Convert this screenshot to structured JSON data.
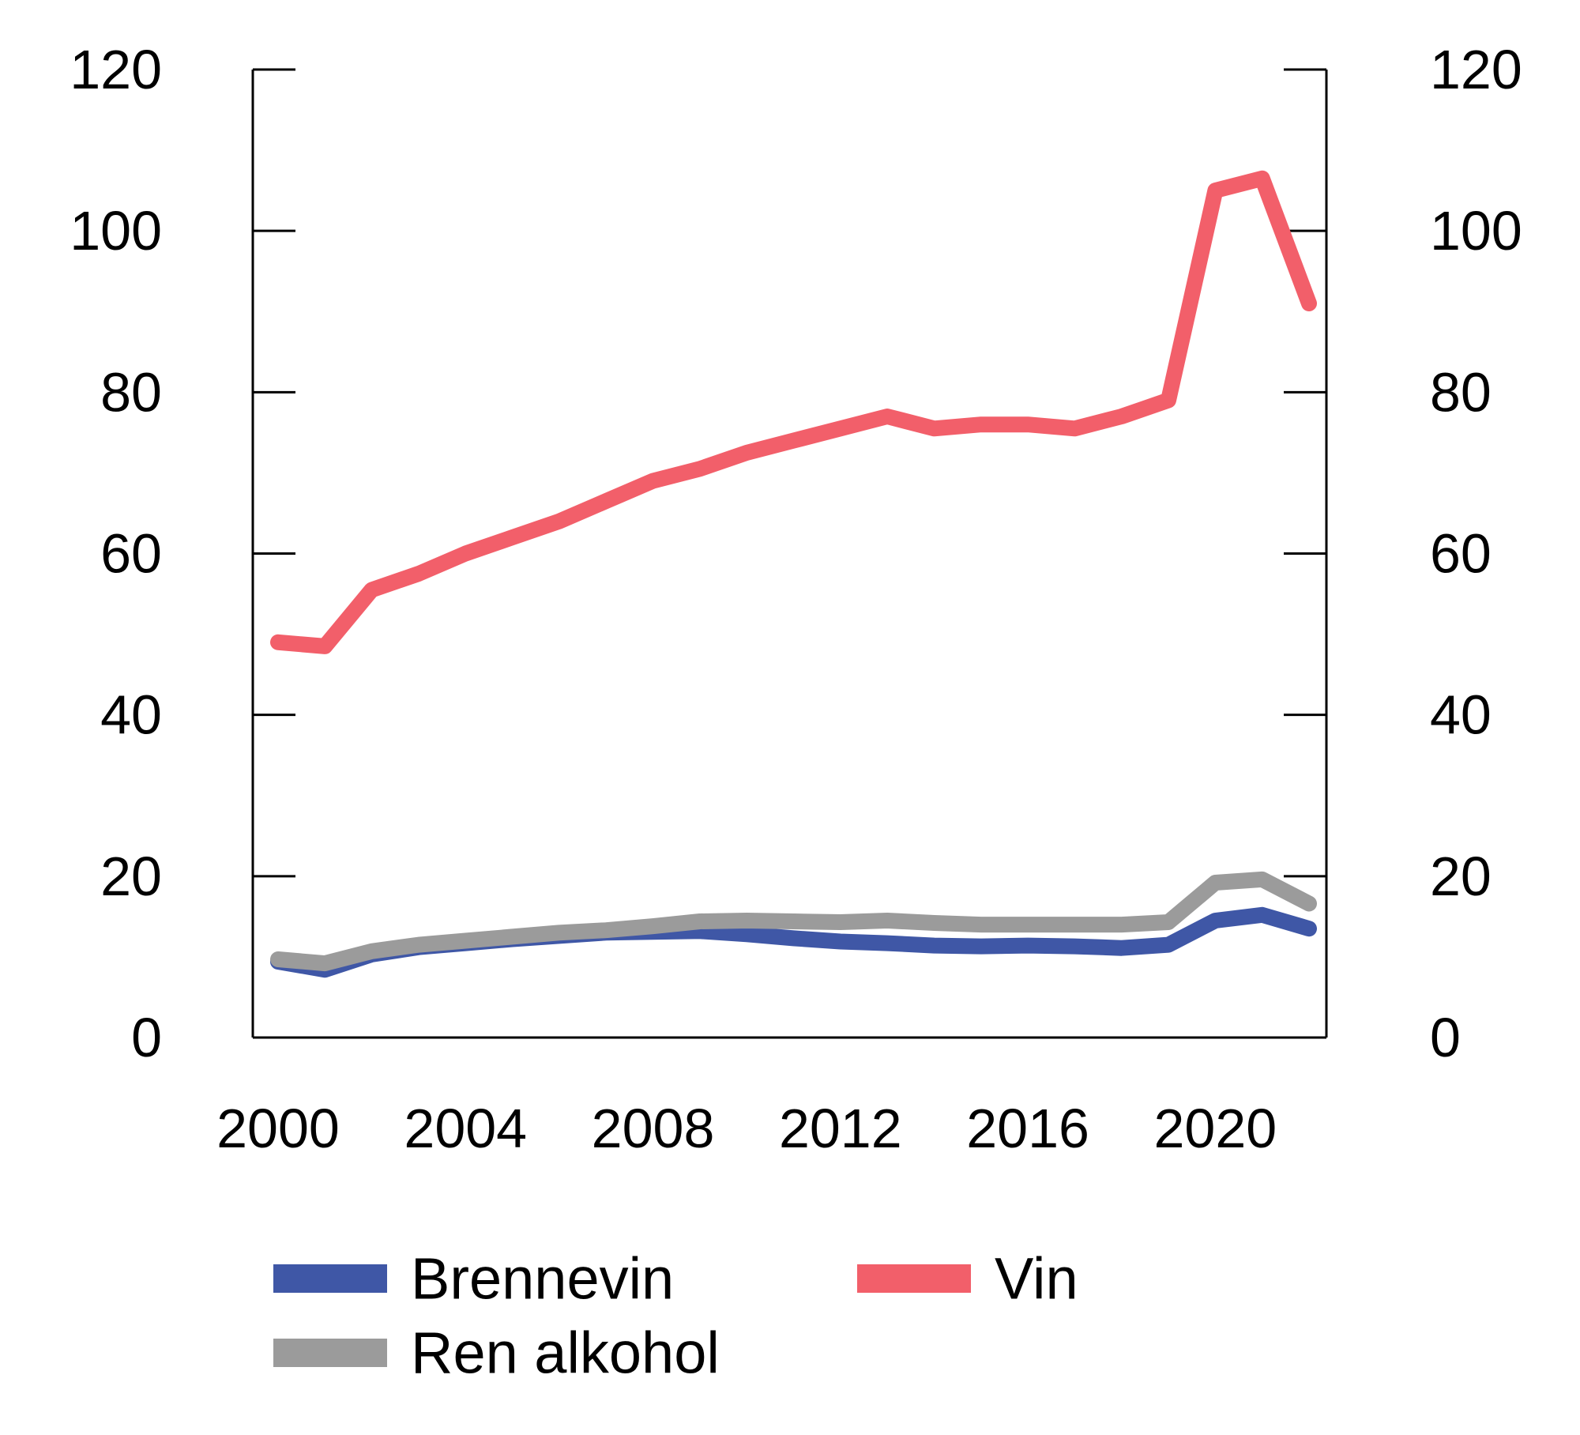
{
  "chart_data": {
    "type": "line",
    "title": "",
    "xlabel": "",
    "ylabel": "",
    "x_years": [
      2000,
      2001,
      2002,
      2003,
      2004,
      2005,
      2006,
      2007,
      2008,
      2009,
      2010,
      2011,
      2012,
      2013,
      2014,
      2015,
      2016,
      2017,
      2018,
      2019,
      2020,
      2021,
      2022
    ],
    "x_axis_tick_labels": [
      "2000",
      "2004",
      "2008",
      "2012",
      "2016",
      "2020"
    ],
    "x_axis_tick_years": [
      2000,
      2004,
      2008,
      2012,
      2016,
      2020
    ],
    "y_axis": {
      "min": 0,
      "max": 120,
      "tick_interval": 20,
      "ticks": [
        0,
        20,
        40,
        60,
        80,
        100,
        120
      ],
      "tick_labels_left": [
        "0",
        "20",
        "40",
        "60",
        "80",
        "100",
        "120"
      ],
      "tick_labels_right": [
        "0",
        "20",
        "40",
        "60",
        "80",
        "100",
        "120"
      ]
    },
    "grid": false,
    "background_color": "#ffffff",
    "axis_color": "#000000",
    "series": [
      {
        "name": "Brennevin",
        "color": "#3f57a6",
        "values": [
          9.4,
          8.4,
          10.3,
          11.2,
          11.7,
          12.2,
          12.6,
          13.0,
          13.1,
          13.2,
          12.8,
          12.3,
          11.9,
          11.7,
          11.4,
          11.3,
          11.4,
          11.3,
          11.1,
          11.5,
          14.5,
          15.2,
          13.5
        ]
      },
      {
        "name": "Vin",
        "color": "#f25f6a",
        "values": [
          49,
          48.5,
          55.5,
          57.5,
          60,
          62,
          64,
          66.5,
          69,
          70.5,
          72.5,
          74,
          75.5,
          77,
          75.5,
          76,
          76,
          75.5,
          77,
          79,
          105,
          106.5,
          91
        ]
      },
      {
        "name": "Ren alkohol",
        "color": "#9b9b9b",
        "values": [
          9.7,
          9.2,
          10.7,
          11.5,
          12.0,
          12.5,
          13.0,
          13.3,
          13.8,
          14.4,
          14.5,
          14.4,
          14.3,
          14.5,
          14.2,
          14.0,
          14.0,
          14.0,
          14.0,
          14.3,
          19.2,
          19.6,
          16.6
        ]
      }
    ],
    "draw_order": [
      0,
      2,
      1
    ],
    "legend": {
      "position": "bottom-left",
      "columns": 2,
      "entries": [
        {
          "label": "Brennevin",
          "series_index": 0,
          "row": 0,
          "col": 0
        },
        {
          "label": "Vin",
          "series_index": 1,
          "row": 0,
          "col": 1
        },
        {
          "label": "Ren alkohol",
          "series_index": 2,
          "row": 1,
          "col": 0
        }
      ]
    }
  }
}
